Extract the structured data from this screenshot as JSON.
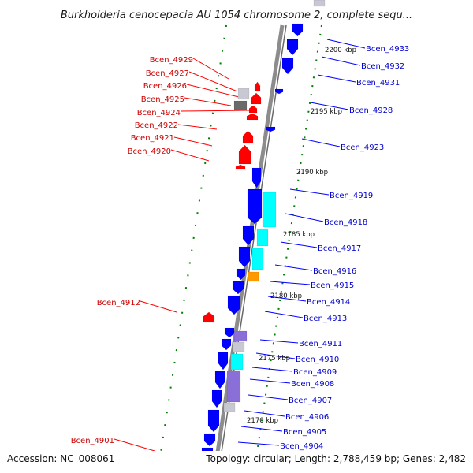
{
  "title": "Burkholderia cenocepacia AU 1054 chromosome 2, complete sequ...",
  "footer": {
    "accession": "Accession: NC_008061",
    "stats": "Topology: circular; Length: 2,788,459 bp; Genes: 2,482"
  },
  "colors": {
    "left_gene": "#ff0000",
    "right_gene": "#0000ff",
    "cyan_gene": "#00ffff",
    "orange_gene": "#ff9900",
    "purple_gene": "#8a6fd8",
    "grey_gene": "#c8c8d2",
    "tick": "#008000",
    "backbone": "#8c8c8c"
  },
  "scale_labels": [
    "2200 kbp",
    "2195 kbp",
    "2190 kbp",
    "2185 kbp",
    "2180 kbp",
    "2175 kbp",
    "2170 kbp"
  ],
  "left_labels": [
    "Bcen_4929",
    "Bcen_4927",
    "Bcen_4926",
    "Bcen_4925",
    "Bcen_4924",
    "Bcen_4922",
    "Bcen_4921",
    "Bcen_4920",
    "Bcen_4912",
    "Bcen_4901"
  ],
  "right_labels": [
    "Bcen_4933",
    "Bcen_4932",
    "Bcen_4931",
    "Bcen_4928",
    "Bcen_4923",
    "Bcen_4919",
    "Bcen_4918",
    "Bcen_4917",
    "Bcen_4916",
    "Bcen_4915",
    "Bcen_4914",
    "Bcen_4913",
    "Bcen_4911",
    "Bcen_4910",
    "Bcen_4909",
    "Bcen_4908",
    "Bcen_4907",
    "Bcen_4906",
    "Bcen_4905",
    "Bcen_4904"
  ]
}
